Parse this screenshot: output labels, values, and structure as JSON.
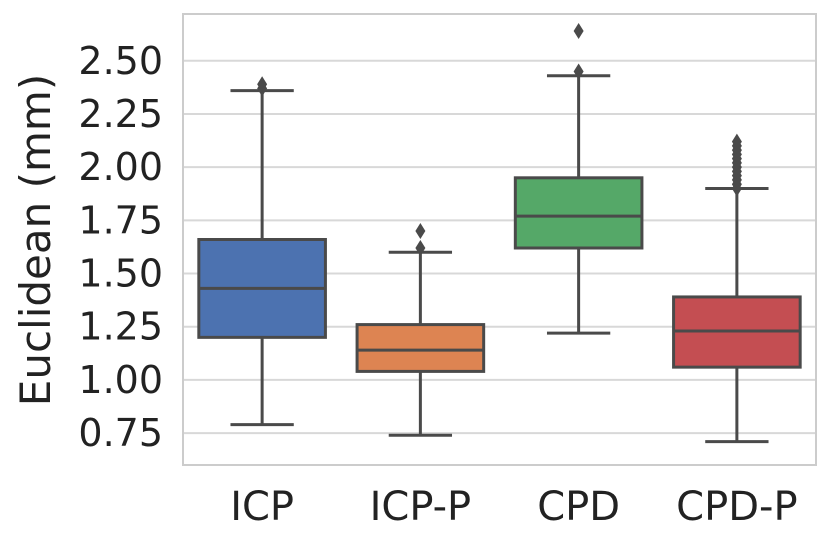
{
  "chart_data": {
    "type": "box",
    "title": "",
    "xlabel": "",
    "ylabel": "Euclidean (mm)",
    "ylim": [
      0.6,
      2.72
    ],
    "yticks": [
      0.75,
      1.0,
      1.25,
      1.5,
      1.75,
      2.0,
      2.25,
      2.5
    ],
    "ytick_labels": [
      "0.75",
      "1.00",
      "1.25",
      "1.50",
      "1.75",
      "2.00",
      "2.25",
      "2.50"
    ],
    "grid": true,
    "series": [
      {
        "name": "ICP",
        "color": "#4c72b0",
        "whisker_low": 0.79,
        "q1": 1.2,
        "median": 1.43,
        "q3": 1.66,
        "whisker_high": 2.36,
        "outliers": [
          2.37,
          2.39
        ]
      },
      {
        "name": "ICP-P",
        "color": "#dd8452",
        "whisker_low": 0.74,
        "q1": 1.04,
        "median": 1.14,
        "q3": 1.26,
        "whisker_high": 1.6,
        "outliers": [
          1.62,
          1.7
        ]
      },
      {
        "name": "CPD",
        "color": "#55a868",
        "whisker_low": 1.22,
        "q1": 1.62,
        "median": 1.77,
        "q3": 1.95,
        "whisker_high": 2.43,
        "outliers": [
          2.45,
          2.64
        ]
      },
      {
        "name": "CPD-P",
        "color": "#c44e52",
        "whisker_low": 0.71,
        "q1": 1.06,
        "median": 1.23,
        "q3": 1.39,
        "whisker_high": 1.9,
        "outliers": [
          1.9,
          1.92,
          1.94,
          1.96,
          1.98,
          2.0,
          2.02,
          2.04,
          2.06,
          2.08,
          2.1,
          2.12
        ]
      }
    ]
  }
}
